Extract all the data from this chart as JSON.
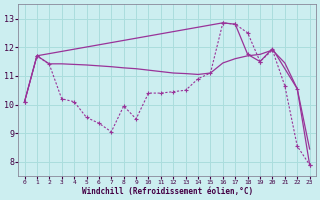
{
  "xlabel": "Windchill (Refroidissement éolien,°C)",
  "background_color": "#cceef0",
  "grid_color": "#aadddd",
  "line_color": "#993399",
  "xlim": [
    -0.5,
    23.5
  ],
  "ylim": [
    7.5,
    13.5
  ],
  "yticks": [
    8,
    9,
    10,
    11,
    12,
    13
  ],
  "xticks": [
    0,
    1,
    2,
    3,
    4,
    5,
    6,
    7,
    8,
    9,
    10,
    11,
    12,
    13,
    14,
    15,
    16,
    17,
    18,
    19,
    20,
    21,
    22,
    23
  ],
  "curve_top_x": [
    0,
    1,
    2,
    3,
    4,
    5,
    6,
    7,
    8,
    9,
    10,
    11,
    12,
    13,
    14,
    15,
    16,
    17,
    18,
    19,
    20,
    21,
    22,
    23
  ],
  "curve_top_y": [
    10.1,
    11.7,
    11.42,
    11.42,
    11.4,
    11.38,
    11.35,
    11.32,
    11.28,
    11.25,
    11.2,
    11.15,
    11.1,
    11.08,
    11.05,
    11.1,
    11.45,
    11.6,
    11.7,
    11.75,
    11.9,
    11.45,
    10.55,
    8.45
  ],
  "curve_mid_x": [
    0,
    1,
    2,
    3,
    4,
    5,
    6,
    7,
    8,
    9,
    10,
    11,
    12,
    13,
    14,
    15,
    16,
    17,
    18,
    19,
    20,
    21,
    22,
    23
  ],
  "curve_mid_y": [
    10.1,
    11.7,
    11.4,
    10.2,
    10.1,
    9.55,
    9.35,
    9.05,
    9.95,
    9.5,
    10.4,
    10.4,
    10.45,
    10.5,
    10.9,
    11.1,
    12.85,
    12.8,
    12.5,
    11.5,
    11.9,
    10.65,
    8.55,
    7.9
  ],
  "curve_bot_x": [
    0,
    1,
    16,
    17,
    18,
    19,
    20,
    22,
    23
  ],
  "curve_bot_y": [
    10.1,
    11.7,
    12.85,
    12.8,
    11.75,
    11.5,
    11.95,
    10.55,
    7.9
  ]
}
